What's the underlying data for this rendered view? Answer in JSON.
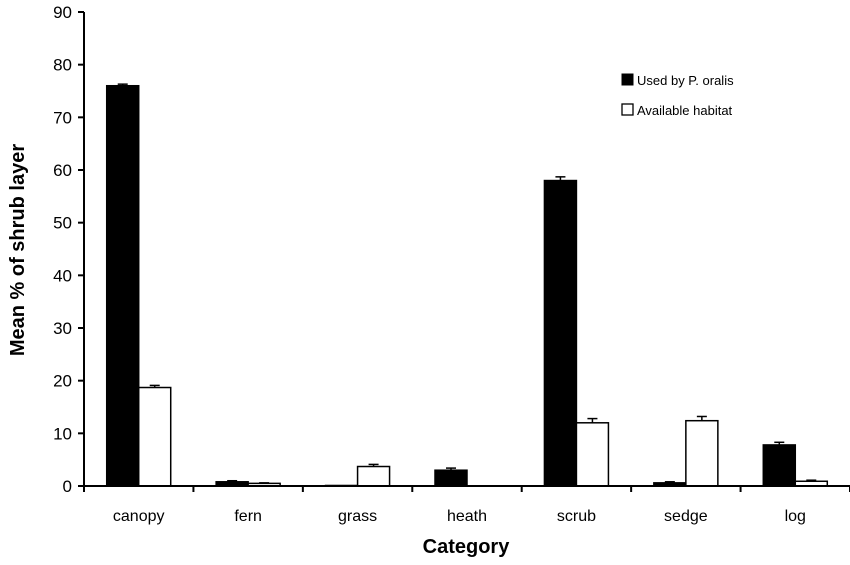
{
  "chart_data": {
    "type": "bar",
    "title": "",
    "xlabel": "Category",
    "ylabel": "Mean % of shrub layer",
    "ylim": [
      0,
      90
    ],
    "yticks": [
      0,
      10,
      20,
      30,
      40,
      50,
      60,
      70,
      80,
      90
    ],
    "grid": false,
    "legend_position": "top-right",
    "categories": [
      "canopy",
      "fern",
      "grass",
      "heath",
      "scrub",
      "sedge",
      "log"
    ],
    "series": [
      {
        "name": "Used by P. oralis",
        "color": "#000000",
        "values": [
          76.0,
          0.8,
          0.1,
          3.0,
          58.0,
          0.6,
          7.8
        ],
        "errors": [
          0.3,
          0.2,
          0.0,
          0.4,
          0.7,
          0.2,
          0.5
        ]
      },
      {
        "name": "Available habitat",
        "color": "#ffffff",
        "values": [
          18.7,
          0.5,
          3.7,
          0.0,
          12.0,
          12.4,
          0.9
        ],
        "errors": [
          0.4,
          0.1,
          0.4,
          0.0,
          0.8,
          0.8,
          0.2
        ]
      }
    ]
  }
}
